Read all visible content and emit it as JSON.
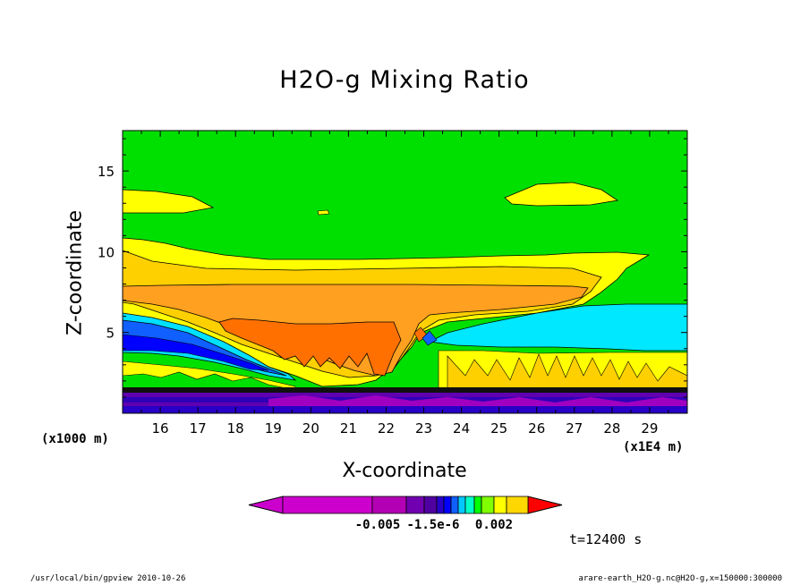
{
  "chart_data": {
    "type": "heatmap",
    "title": "H2O-g Mixing Ratio",
    "xlabel": "X-coordinate",
    "ylabel": "Z-coordinate",
    "x_unit_left": "(x1000 m)",
    "x_unit_right": "(x1E4 m)",
    "x_ticks": [
      "16",
      "17",
      "18",
      "19",
      "20",
      "21",
      "22",
      "23",
      "24",
      "25",
      "26",
      "27",
      "28",
      "29"
    ],
    "y_ticks": [
      "5",
      "10",
      "15"
    ],
    "xlim": [
      15,
      30
    ],
    "ylim": [
      0,
      17.5
    ],
    "colorbar_ticks": [
      "-0.005",
      "-1.5e-6",
      "0.002"
    ],
    "colorbar_colors": [
      "#cc00cc",
      "#b400b4",
      "#7000b0",
      "#5000a0",
      "#2800c8",
      "#0000ff",
      "#1060ff",
      "#00c8ff",
      "#00ffc8",
      "#00ff00",
      "#80ff00",
      "#ffff00",
      "#ffd700",
      "#ffa500",
      "#ff7800",
      "#ff0000"
    ],
    "time_label": "t=12400 s",
    "grid": false
  },
  "footer": {
    "left": "/usr/local/bin/gpview  2010-10-26",
    "right": "arare-earth_H2O-g.nc@H2O-g,x=150000:300000"
  }
}
